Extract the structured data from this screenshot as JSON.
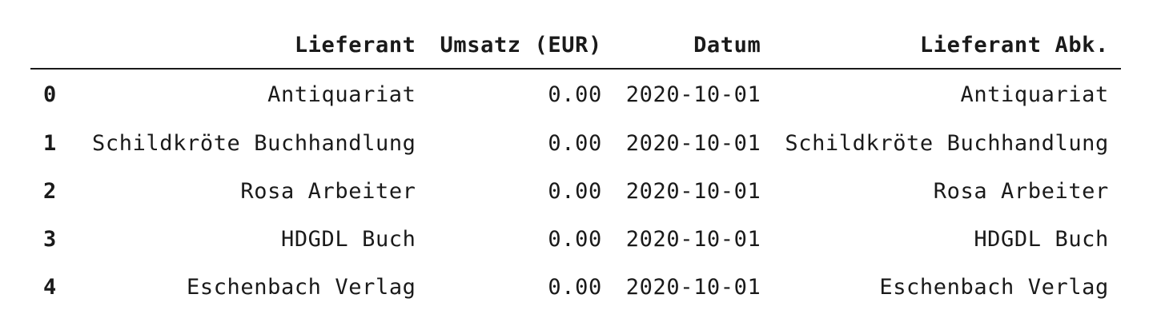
{
  "table": {
    "columns": [
      "Lieferant",
      "Umsatz (EUR)",
      "Datum",
      "Lieferant Abk."
    ],
    "rows": [
      {
        "index": "0",
        "cells": [
          "Antiquariat",
          "0.00",
          "2020-10-01",
          "Antiquariat"
        ]
      },
      {
        "index": "1",
        "cells": [
          "Schildkröte Buchhandlung",
          "0.00",
          "2020-10-01",
          "Schildkröte Buchhandlung"
        ]
      },
      {
        "index": "2",
        "cells": [
          "Rosa Arbeiter",
          "0.00",
          "2020-10-01",
          "Rosa Arbeiter"
        ]
      },
      {
        "index": "3",
        "cells": [
          "HDGDL Buch",
          "0.00",
          "2020-10-01",
          "HDGDL Buch"
        ]
      },
      {
        "index": "4",
        "cells": [
          "Eschenbach Verlag",
          "0.00",
          "2020-10-01",
          "Eschenbach Verlag"
        ]
      }
    ]
  },
  "colors": {
    "text": "#1a1a1a",
    "rule": "#1a1a1a",
    "background": "#ffffff"
  }
}
